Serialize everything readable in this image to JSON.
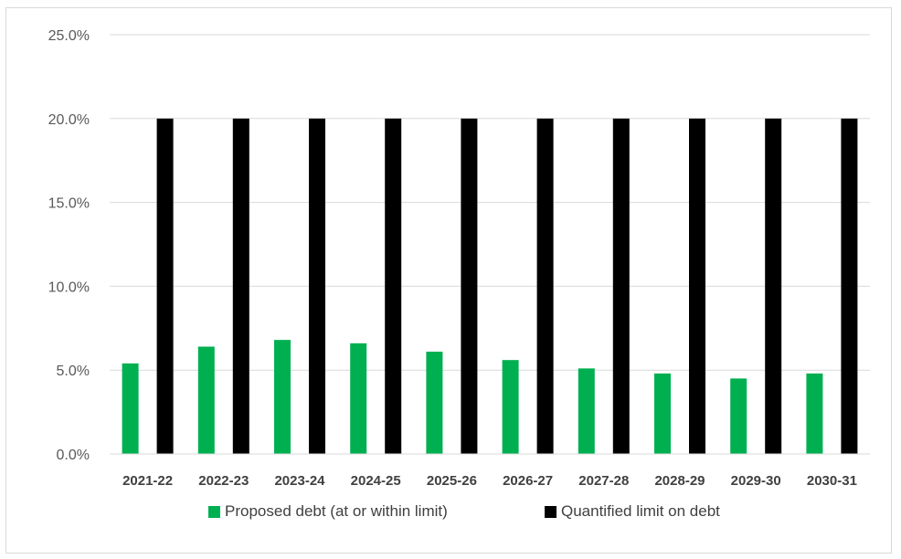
{
  "chart_data": {
    "type": "bar",
    "categories": [
      "2021-22",
      "2022-23",
      "2023-24",
      "2024-25",
      "2025-26",
      "2026-27",
      "2027-28",
      "2028-29",
      "2029-30",
      "2030-31"
    ],
    "series": [
      {
        "name": "Proposed debt (at or within limit)",
        "color": "#00b050",
        "values": [
          5.4,
          6.4,
          6.8,
          6.6,
          6.1,
          5.6,
          5.1,
          4.8,
          4.5,
          4.8
        ]
      },
      {
        "name": "Quantified limit on debt",
        "color": "#000000",
        "values": [
          20.0,
          20.0,
          20.0,
          20.0,
          20.0,
          20.0,
          20.0,
          20.0,
          20.0,
          20.0
        ]
      }
    ],
    "yticks": [
      "0.0%",
      "5.0%",
      "10.0%",
      "15.0%",
      "20.0%",
      "25.0%"
    ],
    "ylim": [
      0,
      25
    ],
    "grid": true,
    "legend": "bottom"
  }
}
